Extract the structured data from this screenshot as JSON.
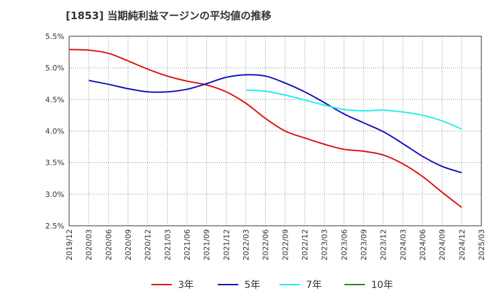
{
  "chart_data": {
    "type": "line",
    "title": "[1853]  当期純利益マージンの平均値の推移",
    "xlabel": "",
    "ylabel": "",
    "x_ticks": [
      "2019/12",
      "2020/03",
      "2020/06",
      "2020/09",
      "2020/12",
      "2021/03",
      "2021/06",
      "2021/09",
      "2021/12",
      "2022/03",
      "2022/06",
      "2022/09",
      "2022/12",
      "2023/03",
      "2023/06",
      "2023/09",
      "2023/12",
      "2024/03",
      "2024/06",
      "2024/09",
      "2024/12",
      "2025/03"
    ],
    "y_ticks": [
      2.5,
      3.0,
      3.5,
      4.0,
      4.5,
      5.0,
      5.5
    ],
    "y_tick_labels": [
      "2.5%",
      "3.0%",
      "3.5%",
      "4.0%",
      "4.5%",
      "5.0%",
      "5.5%"
    ],
    "ylim": [
      2.5,
      5.5
    ],
    "grid": true,
    "legend_position": "bottom",
    "series": [
      {
        "name": "3年",
        "color": "#dd1111",
        "values": [
          5.29,
          5.28,
          5.23,
          5.11,
          4.98,
          4.87,
          4.79,
          4.73,
          4.62,
          4.44,
          4.2,
          4.0,
          3.89,
          3.79,
          3.71,
          3.68,
          3.62,
          3.48,
          3.28,
          3.03,
          2.79,
          null
        ]
      },
      {
        "name": "5年",
        "color": "#1111bb",
        "values": [
          null,
          4.8,
          4.74,
          4.67,
          4.62,
          4.62,
          4.66,
          4.75,
          4.85,
          4.89,
          4.87,
          4.76,
          4.62,
          4.45,
          4.27,
          4.13,
          3.99,
          3.8,
          3.6,
          3.44,
          3.34,
          null
        ]
      },
      {
        "name": "7年",
        "color": "#22eeee",
        "values": [
          null,
          null,
          null,
          null,
          null,
          null,
          null,
          null,
          null,
          4.65,
          4.63,
          4.57,
          4.49,
          4.41,
          4.34,
          4.32,
          4.33,
          4.3,
          4.25,
          4.16,
          4.03,
          null
        ]
      },
      {
        "name": "10年",
        "color": "#228822",
        "values": [
          null,
          null,
          null,
          null,
          null,
          null,
          null,
          null,
          null,
          null,
          null,
          null,
          null,
          null,
          null,
          null,
          null,
          null,
          null,
          null,
          null,
          null
        ]
      }
    ]
  }
}
